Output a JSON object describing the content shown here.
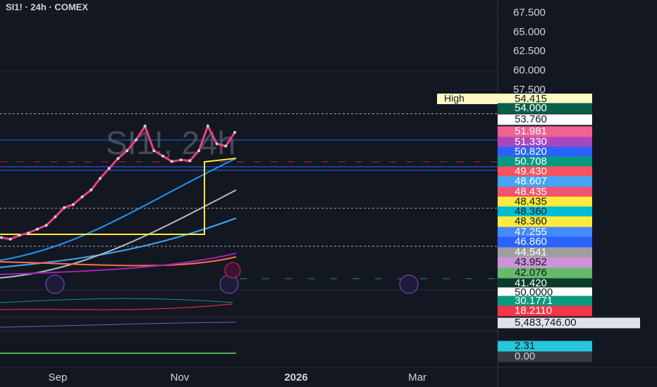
{
  "header": {
    "symbol": "SI1! · 24h · COMEX",
    "watermark": "SI1!, 24h"
  },
  "chart_data": {
    "type": "line",
    "color": "#d1d4dc",
    "values": [
      38.3,
      38.1,
      38.6,
      38.9,
      39.4,
      39.9,
      41.0,
      42.2,
      42.6,
      43.6,
      44.5,
      46.0,
      47.3,
      48.6,
      49.6,
      51.0,
      52.8,
      49.6,
      48.9,
      48.2,
      48.4,
      48.3,
      49.6,
      52.8,
      50.5,
      50.2,
      51.981
    ],
    "ylim": [
      31.5,
      69.2
    ],
    "yticks": [
      {
        "value": 67.5,
        "label": "67.500"
      },
      {
        "value": 65,
        "label": "65.000"
      },
      {
        "value": 62.5,
        "label": "62.500"
      },
      {
        "value": 60,
        "label": "60.000"
      },
      {
        "value": 57.5,
        "label": "57.500"
      }
    ],
    "high": {
      "label": "High",
      "value": 54.415,
      "value_label": "54.415"
    },
    "x_axis_labels": [
      "Sep",
      "Nov",
      "2026",
      "Mar"
    ]
  },
  "price_tags": [
    {
      "label": "54.000",
      "color": "#0b5e4a",
      "text_color": "#ffffff"
    },
    {
      "label": "53.760",
      "color": "#ffffff",
      "text_color": "#131722"
    },
    {
      "label": "51.981",
      "color": "#f06292",
      "text_color": "#ffffff"
    },
    {
      "label": "51.330",
      "color": "#ab47bc",
      "text_color": "#ffffff"
    },
    {
      "label": "50.820",
      "color": "#2962ff",
      "text_color": "#ffffff"
    },
    {
      "label": "50.708",
      "color": "#089981",
      "text_color": "#ffffff"
    },
    {
      "label": "49.430",
      "color": "#f7525f",
      "text_color": "#ffffff"
    },
    {
      "label": "48.607",
      "color": "#42a5f5",
      "text_color": "#ffffff"
    },
    {
      "label": "48.435",
      "color": "#ef5370",
      "text_color": "#ffffff"
    },
    {
      "label": "48.435",
      "color": "#ffeb3b",
      "text_color": "#131722"
    },
    {
      "label": "48.360",
      "color": "#00bcd4",
      "text_color": "#131722"
    },
    {
      "label": "48.360",
      "color": "#ffeb3b",
      "text_color": "#131722"
    },
    {
      "label": "47.255",
      "color": "#448aff",
      "text_color": "#ffffff"
    },
    {
      "label": "46.860",
      "color": "#2962ff",
      "text_color": "#ffffff"
    },
    {
      "label": "44.541",
      "color": "#9e9e9e",
      "text_color": "#ffffff"
    },
    {
      "label": "43.952",
      "color": "#ce93d8",
      "text_color": "#131722"
    },
    {
      "label": "42.076",
      "color": "#66bb6a",
      "text_color": "#131722"
    },
    {
      "label": "41.420",
      "color": "#0d3b2e",
      "text_color": "#ffffff"
    },
    {
      "label": "50.0000",
      "color": "#ffffff",
      "text_color": "#131722"
    },
    {
      "label": "30.1771",
      "color": "#089981",
      "text_color": "#ffffff"
    },
    {
      "label": "18.2110",
      "color": "#f23645",
      "text_color": "#ffffff"
    },
    {
      "label": "5,483,746.00",
      "color": "#e0e3eb",
      "text_color": "#131722"
    },
    {
      "label": "2.31",
      "color": "#26c6da",
      "text_color": "#131722"
    },
    {
      "label": "0.00",
      "color": "#363a45",
      "text_color": "#d1d4dc"
    }
  ]
}
